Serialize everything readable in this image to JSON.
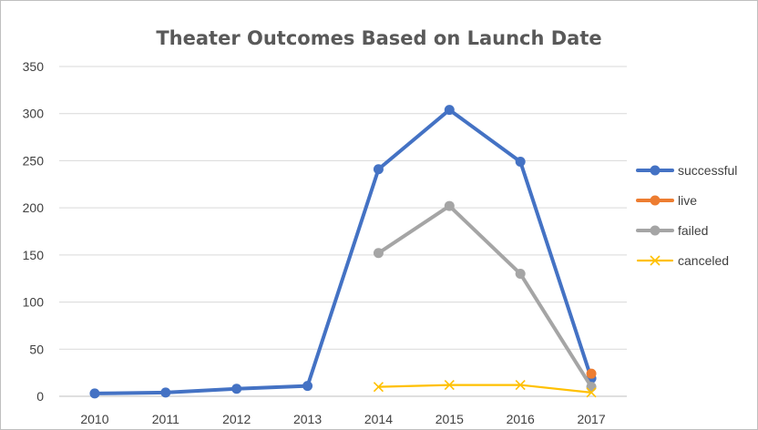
{
  "chart_data": {
    "type": "line",
    "title": "Theater Outcomes Based on Launch Date",
    "xlabel": "",
    "ylabel": "",
    "categories": [
      "2010",
      "2011",
      "2012",
      "2013",
      "2014",
      "2015",
      "2016",
      "2017"
    ],
    "ylim": [
      0,
      350
    ],
    "yticks": [
      0,
      50,
      100,
      150,
      200,
      250,
      300,
      350
    ],
    "grid": true,
    "legend_position": "right",
    "series": [
      {
        "name": "successful",
        "color": "#4472C4",
        "marker": "circle",
        "values": [
          3,
          4,
          8,
          11,
          241,
          304,
          249,
          19
        ]
      },
      {
        "name": "live",
        "color": "#ED7D31",
        "marker": "circle",
        "values": [
          null,
          null,
          null,
          null,
          null,
          null,
          null,
          24
        ]
      },
      {
        "name": "failed",
        "color": "#A5A5A5",
        "marker": "circle",
        "values": [
          null,
          null,
          null,
          null,
          152,
          202,
          130,
          10
        ]
      },
      {
        "name": "canceled",
        "color": "#FFC000",
        "marker": "x",
        "values": [
          null,
          null,
          null,
          null,
          10,
          12,
          12,
          4
        ]
      }
    ]
  }
}
